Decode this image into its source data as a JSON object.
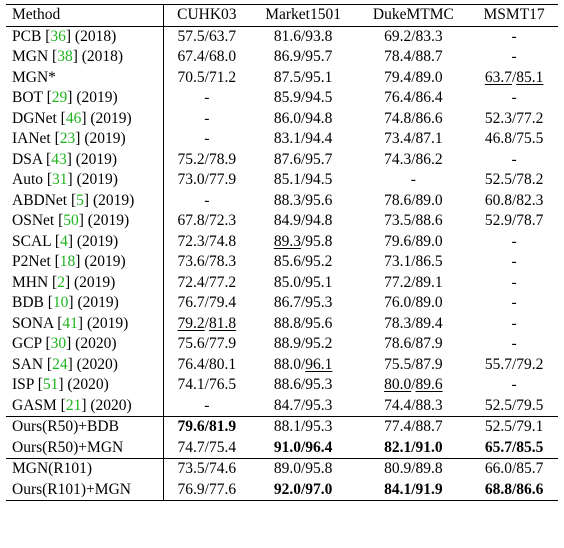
{
  "table": {
    "headers": [
      "Method",
      "CUHK03",
      "Market1501",
      "DukeMTMC",
      "MSMT17"
    ],
    "rows": [
      {
        "name": "PCB",
        "cite": "36",
        "year": "(2018)",
        "cells": [
          [
            "57.5/63.7"
          ],
          [
            "81.6/93.8"
          ],
          [
            "69.2/83.3"
          ],
          [
            "-"
          ]
        ]
      },
      {
        "name": "MGN",
        "cite": "38",
        "year": "(2018)",
        "cells": [
          [
            "67.4/68.0"
          ],
          [
            "86.9/95.7"
          ],
          [
            "78.4/88.7"
          ],
          [
            "-"
          ]
        ]
      },
      {
        "name": "MGN*",
        "cite": "",
        "year": "",
        "cells": [
          [
            "70.5/71.2"
          ],
          [
            "87.5/95.1"
          ],
          [
            "79.4/89.0"
          ],
          [
            {
              "t": "63.7",
              "u": true
            },
            {
              "t": "/"
            },
            {
              "t": "85.1",
              "u": true
            }
          ]
        ]
      },
      {
        "name": "BOT",
        "cite": "29",
        "year": "(2019)",
        "cells": [
          [
            "-"
          ],
          [
            "85.9/94.5"
          ],
          [
            "76.4/86.4"
          ],
          [
            "-"
          ]
        ]
      },
      {
        "name": "DGNet",
        "cite": "46",
        "year": "(2019)",
        "cells": [
          [
            "-"
          ],
          [
            "86.0/94.8"
          ],
          [
            "74.8/86.6"
          ],
          [
            "52.3/77.2"
          ]
        ]
      },
      {
        "name": "IANet",
        "cite": "23",
        "year": "(2019)",
        "cells": [
          [
            "-"
          ],
          [
            "83.1/94.4"
          ],
          [
            "73.4/87.1"
          ],
          [
            "46.8/75.5"
          ]
        ]
      },
      {
        "name": "DSA",
        "cite": "43",
        "year": "(2019)",
        "cells": [
          [
            "75.2/78.9"
          ],
          [
            "87.6/95.7"
          ],
          [
            "74.3/86.2"
          ],
          [
            "-"
          ]
        ]
      },
      {
        "name": "Auto",
        "cite": "31",
        "year": "(2019)",
        "cells": [
          [
            "73.0/77.9"
          ],
          [
            "85.1/94.5"
          ],
          [
            "-"
          ],
          [
            "52.5/78.2"
          ]
        ]
      },
      {
        "name": "ABDNet",
        "cite": "5",
        "year": "(2019)",
        "cells": [
          [
            "-"
          ],
          [
            "88.3/95.6"
          ],
          [
            "78.6/89.0"
          ],
          [
            "60.8/82.3"
          ]
        ]
      },
      {
        "name": "OSNet",
        "cite": "50",
        "year": "(2019)",
        "cells": [
          [
            "67.8/72.3"
          ],
          [
            "84.9/94.8"
          ],
          [
            "73.5/88.6"
          ],
          [
            "52.9/78.7"
          ]
        ]
      },
      {
        "name": "SCAL",
        "cite": "4",
        "year": "(2019)",
        "cells": [
          [
            "72.3/74.8"
          ],
          [
            {
              "t": "89.3",
              "u": true
            },
            {
              "t": "/95.8"
            }
          ],
          [
            "79.6/89.0"
          ],
          [
            "-"
          ]
        ]
      },
      {
        "name": "P2Net",
        "cite": "18",
        "year": "(2019)",
        "cells": [
          [
            "73.6/78.3"
          ],
          [
            "85.6/95.2"
          ],
          [
            "73.1/86.5"
          ],
          [
            "-"
          ]
        ]
      },
      {
        "name": "MHN",
        "cite": "2",
        "year": "(2019)",
        "cells": [
          [
            "72.4/77.2"
          ],
          [
            "85.0/95.1"
          ],
          [
            "77.2/89.1"
          ],
          [
            "-"
          ]
        ]
      },
      {
        "name": "BDB",
        "cite": "10",
        "year": "(2019)",
        "cells": [
          [
            "76.7/79.4"
          ],
          [
            "86.7/95.3"
          ],
          [
            "76.0/89.0"
          ],
          [
            "-"
          ]
        ]
      },
      {
        "name": "SONA",
        "cite": "41",
        "year": "(2019)",
        "cells": [
          [
            {
              "t": "79.2",
              "u": true
            },
            {
              "t": "/"
            },
            {
              "t": "81.8",
              "u": true
            }
          ],
          [
            "88.8/95.6"
          ],
          [
            "78.3/89.4"
          ],
          [
            "-"
          ]
        ]
      },
      {
        "name": "GCP",
        "cite": "30",
        "year": "(2020)",
        "cells": [
          [
            "75.6/77.9"
          ],
          [
            "88.9/95.2"
          ],
          [
            "78.6/87.9"
          ],
          [
            "-"
          ]
        ]
      },
      {
        "name": "SAN",
        "cite": "24",
        "year": "(2020)",
        "cells": [
          [
            "76.4/80.1"
          ],
          [
            {
              "t": "88.0/"
            },
            {
              "t": "96.1",
              "u": true
            }
          ],
          [
            "75.5/87.9"
          ],
          [
            "55.7/79.2"
          ]
        ]
      },
      {
        "name": "ISP",
        "cite": "51",
        "year": "(2020)",
        "cells": [
          [
            "74.1/76.5"
          ],
          [
            "88.6/95.3"
          ],
          [
            {
              "t": "80.0",
              "u": true
            },
            {
              "t": "/"
            },
            {
              "t": "89.6",
              "u": true
            }
          ],
          [
            "-"
          ]
        ]
      },
      {
        "name": "GASM",
        "cite": "21",
        "year": "(2020)",
        "cells": [
          [
            "-"
          ],
          [
            "84.7/95.3"
          ],
          [
            "74.4/88.3"
          ],
          [
            "52.5/79.5"
          ]
        ]
      },
      {
        "name": "Ours(R50)+BDB",
        "cite": "",
        "year": "",
        "group_start": true,
        "cells": [
          [
            {
              "t": "79.6/81.9",
              "b": true
            }
          ],
          [
            "88.1/95.3"
          ],
          [
            "77.4/88.7"
          ],
          [
            "52.5/79.1"
          ]
        ]
      },
      {
        "name": "Ours(R50)+MGN",
        "cite": "",
        "year": "",
        "cells": [
          [
            "74.7/75.4"
          ],
          [
            {
              "t": "91.0/96.4",
              "b": true
            }
          ],
          [
            {
              "t": "82.1/91.0",
              "b": true
            }
          ],
          [
            {
              "t": "65.7/85.5",
              "b": true
            }
          ]
        ]
      },
      {
        "name": "MGN(R101)",
        "cite": "",
        "year": "",
        "group_start": true,
        "cells": [
          [
            "73.5/74.6"
          ],
          [
            "89.0/95.8"
          ],
          [
            "80.9/89.8"
          ],
          [
            "66.0/85.7"
          ]
        ]
      },
      {
        "name": "Ours(R101)+MGN",
        "cite": "",
        "year": "",
        "cells": [
          [
            "76.9/77.6"
          ],
          [
            {
              "t": "92.0/97.0",
              "b": true
            }
          ],
          [
            {
              "t": "84.1/91.9",
              "b": true
            }
          ],
          [
            {
              "t": "68.8/86.6",
              "b": true
            }
          ]
        ]
      }
    ]
  }
}
